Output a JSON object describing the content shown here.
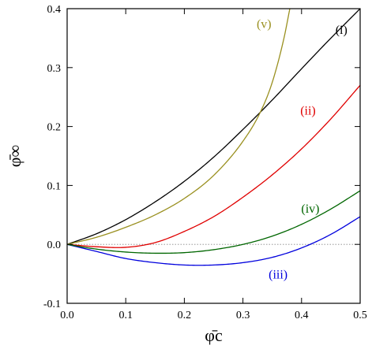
{
  "chart_data": {
    "type": "line",
    "xlabel": "φ̄c",
    "ylabel": "φ̄∞",
    "xlim": [
      0.0,
      0.5
    ],
    "ylim": [
      -0.1,
      0.4
    ],
    "xticks": [
      "0.0",
      "0.1",
      "0.2",
      "0.3",
      "0.4",
      "0.5"
    ],
    "yticks": [
      "-0.1",
      "0.0",
      "0.1",
      "0.2",
      "0.3",
      "0.4"
    ],
    "xtick_values": [
      0.0,
      0.1,
      0.2,
      0.3,
      0.4,
      0.5
    ],
    "ytick_values": [
      -0.1,
      0.0,
      0.1,
      0.2,
      0.3,
      0.4
    ],
    "reference_line": {
      "y": 0.0,
      "style": "dotted",
      "color": "#888888"
    },
    "series": [
      {
        "name": "(i)",
        "color": "#000000",
        "x": [
          0.0,
          0.05,
          0.1,
          0.15,
          0.2,
          0.25,
          0.3,
          0.35,
          0.4,
          0.45,
          0.5
        ],
        "y": [
          0.0,
          0.018,
          0.042,
          0.072,
          0.107,
          0.148,
          0.195,
          0.245,
          0.298,
          0.35,
          0.4
        ]
      },
      {
        "name": "(ii)",
        "color": "#e00000",
        "x": [
          0.0,
          0.05,
          0.1,
          0.15,
          0.2,
          0.25,
          0.3,
          0.35,
          0.4,
          0.45,
          0.5
        ],
        "y": [
          0.0,
          -0.004,
          -0.005,
          0.003,
          0.022,
          0.047,
          0.08,
          0.118,
          0.162,
          0.213,
          0.27
        ]
      },
      {
        "name": "(iii)",
        "color": "#0000dd",
        "x": [
          0.0,
          0.05,
          0.1,
          0.15,
          0.2,
          0.25,
          0.3,
          0.35,
          0.4,
          0.45,
          0.5
        ],
        "y": [
          0.0,
          -0.012,
          -0.024,
          -0.031,
          -0.035,
          -0.035,
          -0.031,
          -0.022,
          -0.006,
          0.017,
          0.047
        ]
      },
      {
        "name": "(iv)",
        "color": "#006600",
        "x": [
          0.0,
          0.05,
          0.1,
          0.15,
          0.2,
          0.25,
          0.3,
          0.35,
          0.4,
          0.45,
          0.5
        ],
        "y": [
          0.0,
          -0.008,
          -0.013,
          -0.015,
          -0.014,
          -0.009,
          0.0,
          0.014,
          0.034,
          0.06,
          0.091
        ]
      },
      {
        "name": "(v)",
        "color": "#9a9020",
        "x": [
          0.0,
          0.05,
          0.1,
          0.15,
          0.2,
          0.25,
          0.3,
          0.33,
          0.35,
          0.37,
          0.38
        ],
        "y": [
          0.0,
          0.012,
          0.029,
          0.05,
          0.078,
          0.117,
          0.175,
          0.225,
          0.275,
          0.35,
          0.4
        ]
      }
    ],
    "annotations": [
      {
        "text": "(i)",
        "x": 0.468,
        "y": 0.357,
        "color": "#000000"
      },
      {
        "text": "(ii)",
        "x": 0.411,
        "y": 0.22,
        "color": "#e00000"
      },
      {
        "text": "(iii)",
        "x": 0.36,
        "y": -0.058,
        "color": "#0000dd"
      },
      {
        "text": "(iv)",
        "x": 0.415,
        "y": 0.054,
        "color": "#006600"
      },
      {
        "text": "(v)",
        "x": 0.336,
        "y": 0.367,
        "color": "#9a9020"
      }
    ]
  }
}
